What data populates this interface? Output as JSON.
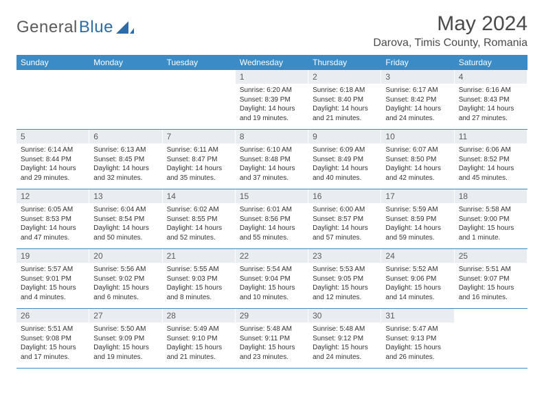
{
  "logo": {
    "text1": "General",
    "text2": "Blue"
  },
  "title": "May 2024",
  "location": "Darova, Timis County, Romania",
  "colors": {
    "header_bg": "#3b8bc6",
    "header_text": "#ffffff",
    "daynum_bg": "#e9edf1",
    "border": "#3b8bc6",
    "body_text": "#333333",
    "title_text": "#4a4a4a"
  },
  "day_names": [
    "Sunday",
    "Monday",
    "Tuesday",
    "Wednesday",
    "Thursday",
    "Friday",
    "Saturday"
  ],
  "weeks": [
    [
      {
        "n": "",
        "sr": "",
        "ss": "",
        "dl": ""
      },
      {
        "n": "",
        "sr": "",
        "ss": "",
        "dl": ""
      },
      {
        "n": "",
        "sr": "",
        "ss": "",
        "dl": ""
      },
      {
        "n": "1",
        "sr": "Sunrise: 6:20 AM",
        "ss": "Sunset: 8:39 PM",
        "dl": "Daylight: 14 hours and 19 minutes."
      },
      {
        "n": "2",
        "sr": "Sunrise: 6:18 AM",
        "ss": "Sunset: 8:40 PM",
        "dl": "Daylight: 14 hours and 21 minutes."
      },
      {
        "n": "3",
        "sr": "Sunrise: 6:17 AM",
        "ss": "Sunset: 8:42 PM",
        "dl": "Daylight: 14 hours and 24 minutes."
      },
      {
        "n": "4",
        "sr": "Sunrise: 6:16 AM",
        "ss": "Sunset: 8:43 PM",
        "dl": "Daylight: 14 hours and 27 minutes."
      }
    ],
    [
      {
        "n": "5",
        "sr": "Sunrise: 6:14 AM",
        "ss": "Sunset: 8:44 PM",
        "dl": "Daylight: 14 hours and 29 minutes."
      },
      {
        "n": "6",
        "sr": "Sunrise: 6:13 AM",
        "ss": "Sunset: 8:45 PM",
        "dl": "Daylight: 14 hours and 32 minutes."
      },
      {
        "n": "7",
        "sr": "Sunrise: 6:11 AM",
        "ss": "Sunset: 8:47 PM",
        "dl": "Daylight: 14 hours and 35 minutes."
      },
      {
        "n": "8",
        "sr": "Sunrise: 6:10 AM",
        "ss": "Sunset: 8:48 PM",
        "dl": "Daylight: 14 hours and 37 minutes."
      },
      {
        "n": "9",
        "sr": "Sunrise: 6:09 AM",
        "ss": "Sunset: 8:49 PM",
        "dl": "Daylight: 14 hours and 40 minutes."
      },
      {
        "n": "10",
        "sr": "Sunrise: 6:07 AM",
        "ss": "Sunset: 8:50 PM",
        "dl": "Daylight: 14 hours and 42 minutes."
      },
      {
        "n": "11",
        "sr": "Sunrise: 6:06 AM",
        "ss": "Sunset: 8:52 PM",
        "dl": "Daylight: 14 hours and 45 minutes."
      }
    ],
    [
      {
        "n": "12",
        "sr": "Sunrise: 6:05 AM",
        "ss": "Sunset: 8:53 PM",
        "dl": "Daylight: 14 hours and 47 minutes."
      },
      {
        "n": "13",
        "sr": "Sunrise: 6:04 AM",
        "ss": "Sunset: 8:54 PM",
        "dl": "Daylight: 14 hours and 50 minutes."
      },
      {
        "n": "14",
        "sr": "Sunrise: 6:02 AM",
        "ss": "Sunset: 8:55 PM",
        "dl": "Daylight: 14 hours and 52 minutes."
      },
      {
        "n": "15",
        "sr": "Sunrise: 6:01 AM",
        "ss": "Sunset: 8:56 PM",
        "dl": "Daylight: 14 hours and 55 minutes."
      },
      {
        "n": "16",
        "sr": "Sunrise: 6:00 AM",
        "ss": "Sunset: 8:57 PM",
        "dl": "Daylight: 14 hours and 57 minutes."
      },
      {
        "n": "17",
        "sr": "Sunrise: 5:59 AM",
        "ss": "Sunset: 8:59 PM",
        "dl": "Daylight: 14 hours and 59 minutes."
      },
      {
        "n": "18",
        "sr": "Sunrise: 5:58 AM",
        "ss": "Sunset: 9:00 PM",
        "dl": "Daylight: 15 hours and 1 minute."
      }
    ],
    [
      {
        "n": "19",
        "sr": "Sunrise: 5:57 AM",
        "ss": "Sunset: 9:01 PM",
        "dl": "Daylight: 15 hours and 4 minutes."
      },
      {
        "n": "20",
        "sr": "Sunrise: 5:56 AM",
        "ss": "Sunset: 9:02 PM",
        "dl": "Daylight: 15 hours and 6 minutes."
      },
      {
        "n": "21",
        "sr": "Sunrise: 5:55 AM",
        "ss": "Sunset: 9:03 PM",
        "dl": "Daylight: 15 hours and 8 minutes."
      },
      {
        "n": "22",
        "sr": "Sunrise: 5:54 AM",
        "ss": "Sunset: 9:04 PM",
        "dl": "Daylight: 15 hours and 10 minutes."
      },
      {
        "n": "23",
        "sr": "Sunrise: 5:53 AM",
        "ss": "Sunset: 9:05 PM",
        "dl": "Daylight: 15 hours and 12 minutes."
      },
      {
        "n": "24",
        "sr": "Sunrise: 5:52 AM",
        "ss": "Sunset: 9:06 PM",
        "dl": "Daylight: 15 hours and 14 minutes."
      },
      {
        "n": "25",
        "sr": "Sunrise: 5:51 AM",
        "ss": "Sunset: 9:07 PM",
        "dl": "Daylight: 15 hours and 16 minutes."
      }
    ],
    [
      {
        "n": "26",
        "sr": "Sunrise: 5:51 AM",
        "ss": "Sunset: 9:08 PM",
        "dl": "Daylight: 15 hours and 17 minutes."
      },
      {
        "n": "27",
        "sr": "Sunrise: 5:50 AM",
        "ss": "Sunset: 9:09 PM",
        "dl": "Daylight: 15 hours and 19 minutes."
      },
      {
        "n": "28",
        "sr": "Sunrise: 5:49 AM",
        "ss": "Sunset: 9:10 PM",
        "dl": "Daylight: 15 hours and 21 minutes."
      },
      {
        "n": "29",
        "sr": "Sunrise: 5:48 AM",
        "ss": "Sunset: 9:11 PM",
        "dl": "Daylight: 15 hours and 23 minutes."
      },
      {
        "n": "30",
        "sr": "Sunrise: 5:48 AM",
        "ss": "Sunset: 9:12 PM",
        "dl": "Daylight: 15 hours and 24 minutes."
      },
      {
        "n": "31",
        "sr": "Sunrise: 5:47 AM",
        "ss": "Sunset: 9:13 PM",
        "dl": "Daylight: 15 hours and 26 minutes."
      },
      {
        "n": "",
        "sr": "",
        "ss": "",
        "dl": ""
      }
    ]
  ]
}
